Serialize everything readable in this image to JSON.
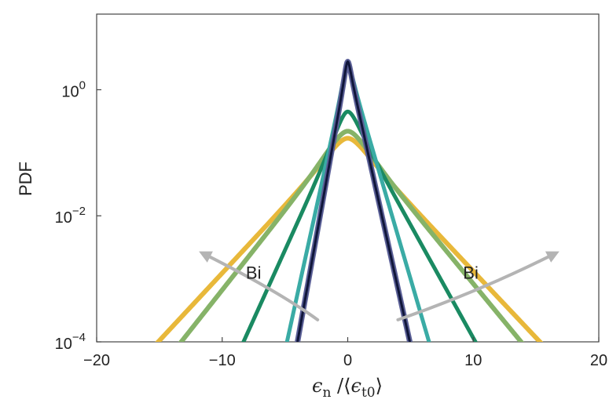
{
  "chart_data": {
    "type": "line",
    "ylabel": "PDF",
    "xlabel": {
      "main": "ϵ",
      "main_sub": "n",
      "sep": " /⟨",
      "denom": "ϵ",
      "denom_sub": "t0",
      "close": "⟩"
    },
    "xlim": [
      -20,
      20
    ],
    "ylim_log10": [
      -4,
      1.2
    ],
    "x_ticks": [
      {
        "value": -20,
        "label": "−20"
      },
      {
        "value": -10,
        "label": "−10"
      },
      {
        "value": 0,
        "label": "0"
      },
      {
        "value": 10,
        "label": "10"
      },
      {
        "value": 20,
        "label": "20"
      }
    ],
    "y_ticks": [
      {
        "exp": 0,
        "base": "10",
        "sup": "0"
      },
      {
        "exp": -2,
        "base": "10",
        "sup": "−2"
      },
      {
        "exp": -4,
        "base": "10",
        "sup": "−4"
      }
    ],
    "series": [
      {
        "name": "curve-1",
        "color": "#e8b83a",
        "width": 6,
        "peak": 0.17,
        "sL": 0.214,
        "sR": 0.211,
        "core": 1.0
      },
      {
        "name": "curve-2",
        "color": "#86b368",
        "width": 6,
        "peak": 0.22,
        "sL": 0.252,
        "sR": 0.242,
        "core": 1.0
      },
      {
        "name": "curve-3",
        "color": "#1a8a62",
        "width": 5,
        "peak": 0.45,
        "sL": 0.44,
        "sR": 0.359,
        "core": 0.6
      },
      {
        "name": "curve-4",
        "color": "#3aaba5",
        "width": 5,
        "peak": 2.5,
        "sL": 0.909,
        "sR": 0.679,
        "core": 0.25
      },
      {
        "name": "curve-5",
        "color": "#5a5f96",
        "width": 7,
        "peak": 2.8,
        "sL": 1.112,
        "sR": 0.899,
        "core": 0.15
      },
      {
        "name": "curve-6",
        "color": "#10163a",
        "width": 3,
        "peak": 2.8,
        "sL": 1.112,
        "sR": 0.899,
        "core": 0.15
      }
    ],
    "annotations": [
      {
        "text": "Bi",
        "x": -7.5,
        "y": -3.0
      },
      {
        "text": "Bi",
        "x": 9.8,
        "y": -3.0
      }
    ],
    "arrows": [
      {
        "name": "left-arrow",
        "points": [
          [
            -2.4,
            -3.65
          ],
          [
            -5.5,
            -3.2
          ],
          [
            -11.5,
            -2.6
          ]
        ],
        "color": "#b4b4b4"
      },
      {
        "name": "right-arrow",
        "points": [
          [
            4.0,
            -3.65
          ],
          [
            10.5,
            -3.2
          ],
          [
            16.5,
            -2.6
          ]
        ],
        "color": "#b4b4b4"
      }
    ]
  }
}
